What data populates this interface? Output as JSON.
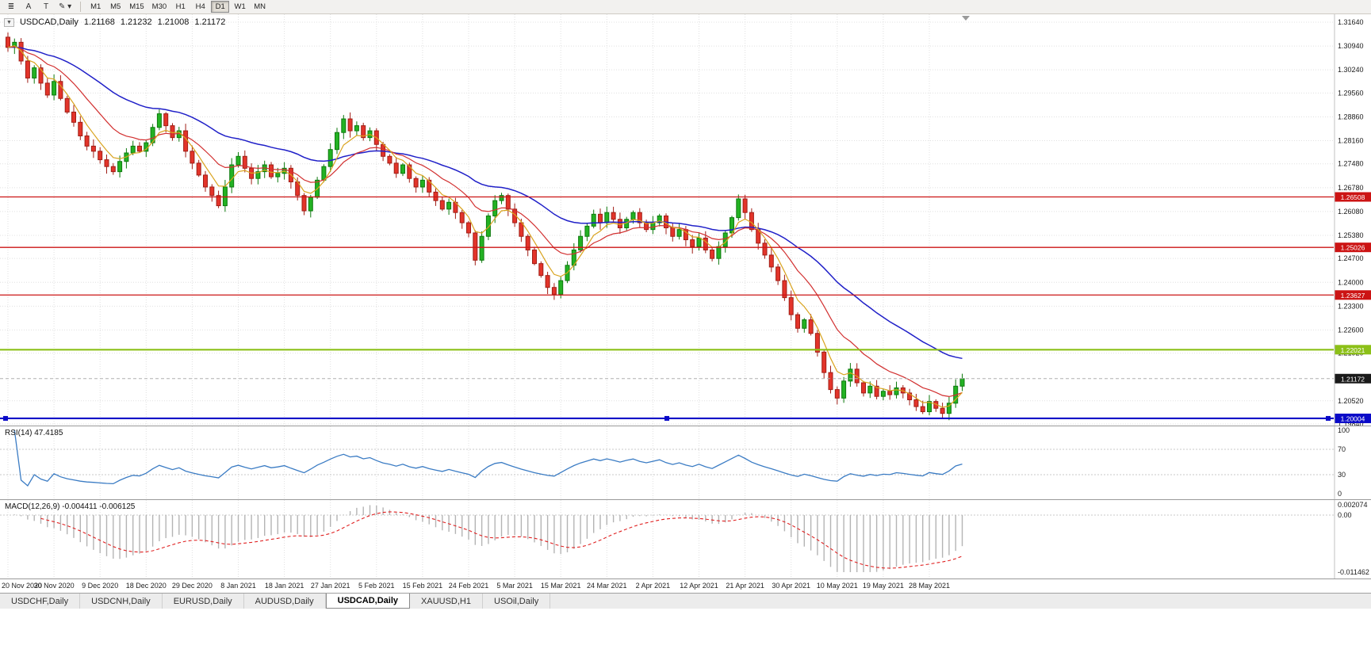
{
  "colors": {
    "up_fill": "#23B223",
    "up_stroke": "#0E7A0E",
    "down_fill": "#E3342A",
    "down_stroke": "#A01E16",
    "ma_fast": "#D9A31E",
    "ma_mid": "#D23030",
    "ma_slow": "#2020C8",
    "rsi_line": "#3B7CC4",
    "macd_hist": "#B4B4B4",
    "macd_signal": "#E02020",
    "hline_red": "#CC1414",
    "hline_green": "#8CC018",
    "hline_blue": "#0A0AC8",
    "badge_current_bg": "#1A1A1A"
  },
  "toolbar": {
    "tools": [
      {
        "name": "chart-list-icon",
        "glyph": "≣"
      },
      {
        "name": "annotation-a-icon",
        "glyph": "A"
      },
      {
        "name": "text-tool-icon",
        "glyph": "T"
      },
      {
        "name": "draw-tool-icon",
        "glyph": "✎",
        "caret": "▾"
      }
    ],
    "timeframes": [
      "M1",
      "M5",
      "M15",
      "M30",
      "H1",
      "H4",
      "D1",
      "W1",
      "MN"
    ],
    "active_timeframe": "D1"
  },
  "chart": {
    "header": {
      "expander": "▼",
      "title": "USDCAD,Daily",
      "open": "1.21168",
      "high": "1.21232",
      "low": "1.21008",
      "close": "1.21172"
    },
    "price_axis_labels": [
      "1.31640",
      "1.30940",
      "1.30240",
      "1.29560",
      "1.28860",
      "1.28160",
      "1.27480",
      "1.26780",
      "1.26080",
      "1.25380",
      "1.24700",
      "1.24000",
      "1.23300",
      "1.22600",
      "1.21920",
      "1.20520",
      "1.19840"
    ],
    "current_price": {
      "value": 1.21172,
      "label": "1.21172"
    },
    "hlines": [
      {
        "price": 1.26508,
        "label": "1.26508",
        "type": "red"
      },
      {
        "price": 1.25026,
        "label": "1.25026",
        "type": "red"
      },
      {
        "price": 1.23627,
        "label": "1.23627",
        "type": "red"
      },
      {
        "price": 1.22021,
        "label": "1.22021",
        "type": "green"
      },
      {
        "price": 1.20004,
        "label": "1.20004",
        "type": "blue",
        "selected": true
      }
    ],
    "date_labels": [
      "20 Nov 2020",
      "30 Nov 2020",
      "9 Dec 2020",
      "18 Dec 2020",
      "29 Dec 2020",
      "8 Jan 2021",
      "18 Jan 2021",
      "27 Jan 2021",
      "5 Feb 2021",
      "15 Feb 2021",
      "24 Feb 2021",
      "5 Mar 2021",
      "15 Mar 2021",
      "24 Mar 2021",
      "2 Apr 2021",
      "12 Apr 2021",
      "21 Apr 2021",
      "30 Apr 2021",
      "10 May 2021",
      "19 May 2021",
      "28 May 2021"
    ],
    "tick_step": 7,
    "price_range": {
      "top_label_value": 1.3164,
      "bottom_label_value": 1.1984
    }
  },
  "chart_data": {
    "type": "candlestick",
    "symbol": "USDCAD",
    "timeframe": "Daily",
    "first_open": 1.312,
    "closes": [
      1.309,
      1.3105,
      1.305,
      1.3,
      1.303,
      1.2985,
      1.295,
      1.299,
      1.294,
      1.29,
      1.287,
      1.283,
      1.28,
      1.2785,
      1.276,
      1.274,
      1.2725,
      1.2755,
      1.278,
      1.28,
      1.2785,
      1.281,
      1.2855,
      1.2895,
      1.286,
      1.2825,
      1.2845,
      1.2785,
      1.275,
      1.2715,
      1.268,
      1.2655,
      1.2625,
      1.268,
      1.2745,
      1.277,
      1.2735,
      1.2705,
      1.2725,
      1.2745,
      1.271,
      1.272,
      1.2735,
      1.2695,
      1.2655,
      1.261,
      1.265,
      1.27,
      1.274,
      1.279,
      1.284,
      1.288,
      1.2845,
      1.286,
      1.2825,
      1.2845,
      1.2805,
      1.277,
      1.275,
      1.272,
      1.2745,
      1.2705,
      1.268,
      1.27,
      1.2665,
      1.264,
      1.2615,
      1.2635,
      1.2605,
      1.2575,
      1.2545,
      1.2465,
      1.2535,
      1.2595,
      1.264,
      1.2655,
      1.2615,
      1.2575,
      1.2535,
      1.2495,
      1.2455,
      1.242,
      1.2385,
      1.2365,
      1.2405,
      1.245,
      1.2495,
      1.2535,
      1.2565,
      1.26,
      1.2575,
      1.2605,
      1.2585,
      1.256,
      1.2585,
      1.2605,
      1.2575,
      1.2555,
      1.2575,
      1.2595,
      1.256,
      1.2535,
      1.2555,
      1.2525,
      1.2505,
      1.253,
      1.2495,
      1.247,
      1.2505,
      1.2545,
      1.259,
      1.2645,
      1.2605,
      1.2555,
      1.2515,
      1.248,
      1.2445,
      1.2405,
      1.2355,
      1.2305,
      1.2265,
      1.229,
      1.225,
      1.2195,
      1.2135,
      1.2085,
      1.206,
      1.211,
      1.2145,
      1.2105,
      1.2075,
      1.2095,
      1.2065,
      1.208,
      1.207,
      1.209,
      1.2075,
      1.2055,
      1.2035,
      1.202,
      1.205,
      1.203,
      1.2015,
      1.2045,
      1.2095,
      1.2117
    ]
  },
  "rsi": {
    "title": "RSI(14) 47.4185",
    "period": 14,
    "value": 47.4185,
    "levels": [
      70,
      30
    ],
    "axis_labels": [
      {
        "v": 100,
        "label": "100"
      },
      {
        "v": 70,
        "label": "70"
      },
      {
        "v": 30,
        "label": "30"
      },
      {
        "v": 0,
        "label": "0"
      }
    ]
  },
  "macd": {
    "title": "MACD(12,26,9) -0.004411 -0.006125",
    "fast": 12,
    "slow": 26,
    "signal": 9,
    "max": 0.002074,
    "min": -0.011462,
    "axis_labels": [
      {
        "v": 0.002074,
        "label": "0.002074"
      },
      {
        "v": 0,
        "label": "0.00"
      },
      {
        "v": -0.011462,
        "label": "-0.011462"
      }
    ]
  },
  "tabs": {
    "items": [
      "USDCHF,Daily",
      "USDCNH,Daily",
      "EURUSD,Daily",
      "AUDUSD,Daily",
      "USDCAD,Daily",
      "XAUUSD,H1",
      "USOil,Daily"
    ],
    "active": "USDCAD,Daily"
  }
}
